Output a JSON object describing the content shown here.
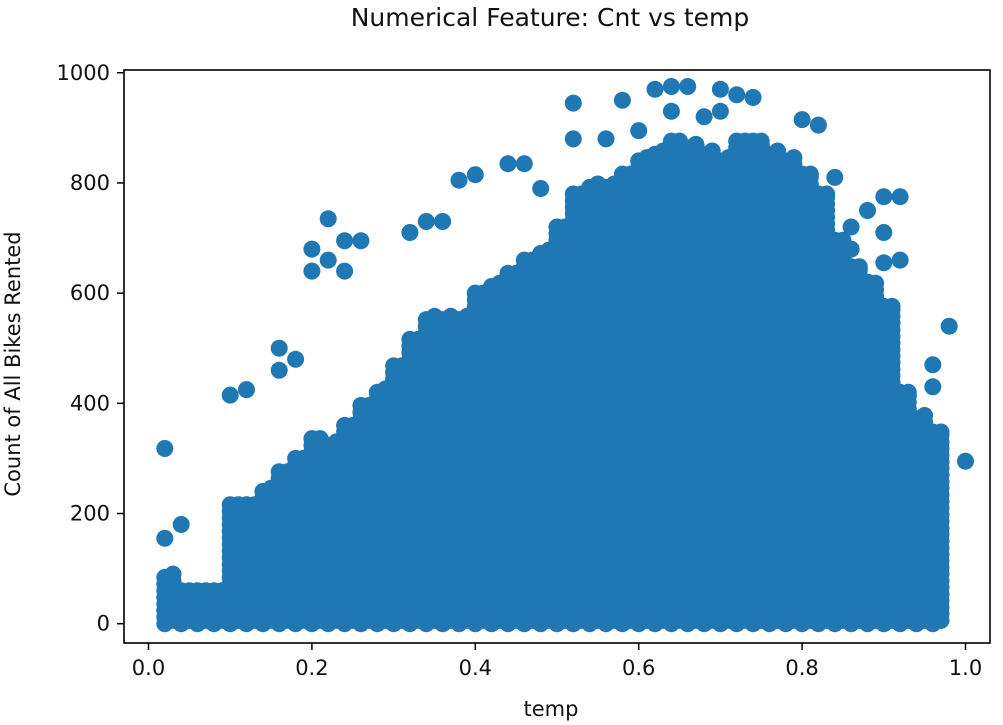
{
  "chart_data": {
    "type": "scatter",
    "title": "Numerical Feature: Cnt vs temp",
    "xlabel": "temp",
    "ylabel": "Count of All Bikes Rented",
    "xlim": [
      -0.03,
      1.03
    ],
    "ylim": [
      -35,
      1005
    ],
    "xticks": [
      0.0,
      0.2,
      0.4,
      0.6,
      0.8,
      1.0
    ],
    "xtick_labels": [
      "0.0",
      "0.2",
      "0.4",
      "0.6",
      "0.8",
      "1.0"
    ],
    "yticks": [
      0,
      200,
      400,
      600,
      800,
      1000
    ],
    "ytick_labels": [
      "0",
      "200",
      "400",
      "600",
      "800",
      "1000"
    ],
    "grid": false,
    "series_color": "#1f77b4",
    "temp_levels": [
      0.02,
      0.04,
      0.06,
      0.08,
      0.1,
      0.12,
      0.14,
      0.16,
      0.18,
      0.2,
      0.22,
      0.24,
      0.26,
      0.28,
      0.3,
      0.32,
      0.34,
      0.36,
      0.38,
      0.4,
      0.42,
      0.44,
      0.46,
      0.48,
      0.5,
      0.52,
      0.54,
      0.56,
      0.58,
      0.6,
      0.62,
      0.64,
      0.66,
      0.68,
      0.7,
      0.72,
      0.74,
      0.76,
      0.78,
      0.8,
      0.82,
      0.84,
      0.86,
      0.88,
      0.9,
      0.92,
      0.94,
      0.96
    ],
    "max_cnt_by_temp": [
      90,
      60,
      60,
      65,
      220,
      220,
      250,
      280,
      300,
      340,
      330,
      360,
      400,
      430,
      470,
      520,
      560,
      560,
      560,
      600,
      620,
      640,
      660,
      680,
      720,
      780,
      800,
      800,
      820,
      850,
      860,
      880,
      870,
      860,
      850,
      880,
      880,
      860,
      850,
      820,
      780,
      700,
      650,
      620,
      580,
      420,
      380,
      350
    ],
    "outliers": [
      {
        "x": 0.02,
        "y": 318
      },
      {
        "x": 0.02,
        "y": 155
      },
      {
        "x": 0.04,
        "y": 180
      },
      {
        "x": 0.1,
        "y": 415
      },
      {
        "x": 0.12,
        "y": 425
      },
      {
        "x": 0.16,
        "y": 500
      },
      {
        "x": 0.16,
        "y": 460
      },
      {
        "x": 0.18,
        "y": 480
      },
      {
        "x": 0.2,
        "y": 680
      },
      {
        "x": 0.2,
        "y": 640
      },
      {
        "x": 0.22,
        "y": 735
      },
      {
        "x": 0.22,
        "y": 660
      },
      {
        "x": 0.24,
        "y": 695
      },
      {
        "x": 0.26,
        "y": 695
      },
      {
        "x": 0.24,
        "y": 640
      },
      {
        "x": 0.32,
        "y": 710
      },
      {
        "x": 0.34,
        "y": 730
      },
      {
        "x": 0.36,
        "y": 730
      },
      {
        "x": 0.38,
        "y": 805
      },
      {
        "x": 0.4,
        "y": 815
      },
      {
        "x": 0.44,
        "y": 835
      },
      {
        "x": 0.46,
        "y": 835
      },
      {
        "x": 0.48,
        "y": 790
      },
      {
        "x": 0.52,
        "y": 945
      },
      {
        "x": 0.52,
        "y": 880
      },
      {
        "x": 0.56,
        "y": 880
      },
      {
        "x": 0.58,
        "y": 950
      },
      {
        "x": 0.6,
        "y": 895
      },
      {
        "x": 0.62,
        "y": 970
      },
      {
        "x": 0.64,
        "y": 975
      },
      {
        "x": 0.66,
        "y": 975
      },
      {
        "x": 0.64,
        "y": 930
      },
      {
        "x": 0.7,
        "y": 970
      },
      {
        "x": 0.72,
        "y": 960
      },
      {
        "x": 0.74,
        "y": 955
      },
      {
        "x": 0.68,
        "y": 920
      },
      {
        "x": 0.7,
        "y": 930
      },
      {
        "x": 0.8,
        "y": 915
      },
      {
        "x": 0.82,
        "y": 905
      },
      {
        "x": 0.84,
        "y": 810
      },
      {
        "x": 0.86,
        "y": 720
      },
      {
        "x": 0.88,
        "y": 750
      },
      {
        "x": 0.9,
        "y": 775
      },
      {
        "x": 0.92,
        "y": 775
      },
      {
        "x": 0.9,
        "y": 710
      },
      {
        "x": 0.9,
        "y": 655
      },
      {
        "x": 0.86,
        "y": 680
      },
      {
        "x": 0.88,
        "y": 620
      },
      {
        "x": 0.92,
        "y": 660
      },
      {
        "x": 0.94,
        "y": 210
      },
      {
        "x": 0.96,
        "y": 470
      },
      {
        "x": 0.96,
        "y": 430
      },
      {
        "x": 0.98,
        "y": 540
      },
      {
        "x": 1.0,
        "y": 295
      },
      {
        "x": 0.94,
        "y": 320
      },
      {
        "x": 0.96,
        "y": 330
      }
    ]
  }
}
